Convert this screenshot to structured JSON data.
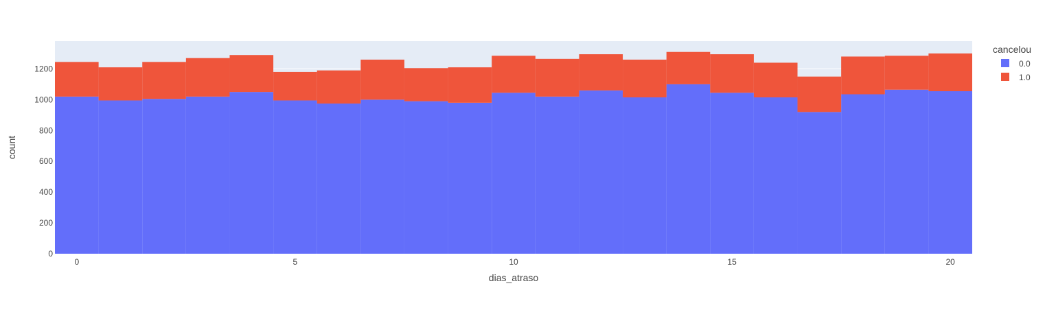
{
  "chart_data": {
    "type": "bar",
    "barmode": "stack",
    "xlabel": "dias_atraso",
    "ylabel": "count",
    "x": [
      0,
      1,
      2,
      3,
      4,
      5,
      6,
      7,
      8,
      9,
      10,
      11,
      12,
      13,
      14,
      15,
      16,
      17,
      18,
      19,
      20
    ],
    "xlim": [
      -0.5,
      20.5
    ],
    "ylim": [
      0,
      1380
    ],
    "xticks": [
      0,
      5,
      10,
      15,
      20
    ],
    "yticks": [
      0,
      200,
      400,
      600,
      800,
      1000,
      1200
    ],
    "grid": true,
    "legend": {
      "title": "cancelou",
      "placement": "top-right"
    },
    "series": [
      {
        "name": "0.0",
        "color": "#636efa",
        "values": [
          1020,
          995,
          1005,
          1020,
          1050,
          995,
          975,
          1000,
          990,
          980,
          1045,
          1020,
          1060,
          1015,
          1100,
          1045,
          1015,
          920,
          1035,
          1065,
          1055
        ]
      },
      {
        "name": "1.0",
        "color": "#ef553b",
        "values": [
          225,
          215,
          240,
          250,
          240,
          185,
          215,
          260,
          215,
          230,
          240,
          245,
          235,
          245,
          210,
          250,
          225,
          230,
          245,
          220,
          245
        ]
      }
    ],
    "colors": {
      "plot_bg": "#e5ecf6",
      "grid": "#ffffff",
      "text": "#444444"
    }
  }
}
